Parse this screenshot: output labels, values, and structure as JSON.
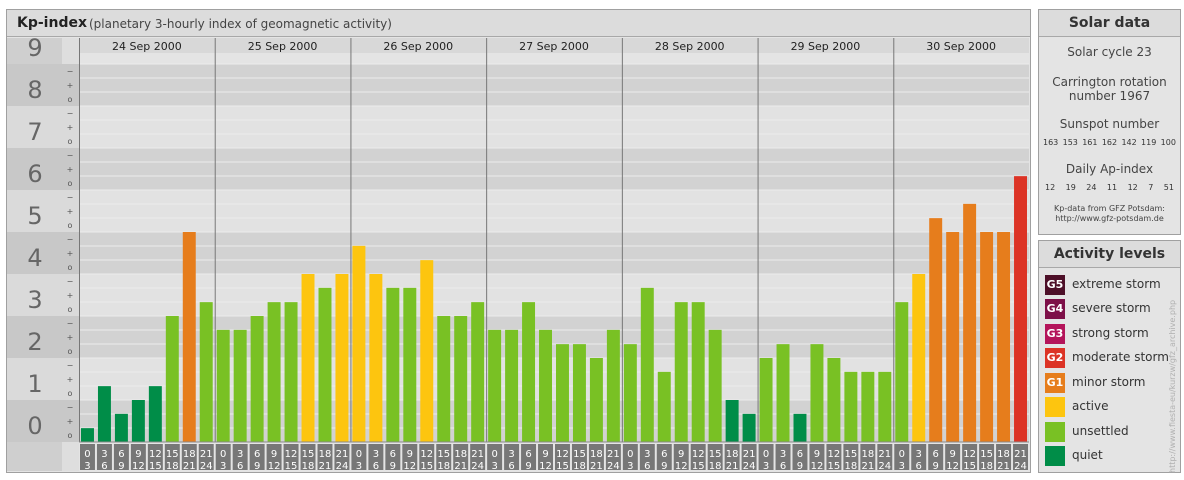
{
  "title": "Kp-index",
  "subtitle": "(planetary 3-hourly index of geomagnetic activity)",
  "chart_data": {
    "type": "bar",
    "ylim": [
      0,
      9
    ],
    "y_ticks": [
      "0",
      "1",
      "2",
      "3",
      "4",
      "5",
      "6",
      "7",
      "8",
      "9"
    ],
    "minor_marks": [
      "o",
      "+",
      "−"
    ],
    "days": [
      "24 Sep 2000",
      "25 Sep 2000",
      "26 Sep 2000",
      "27 Sep 2000",
      "28 Sep 2000",
      "29 Sep 2000",
      "30 Sep 2000"
    ],
    "hour_ranges": [
      [
        "0",
        "3"
      ],
      [
        "3",
        "6"
      ],
      [
        "6",
        "9"
      ],
      [
        "9",
        "12"
      ],
      [
        "12",
        "15"
      ],
      [
        "15",
        "18"
      ],
      [
        "18",
        "21"
      ],
      [
        "21",
        "24"
      ]
    ],
    "values": [
      0.33,
      1.33,
      0.67,
      1.0,
      1.33,
      3.0,
      5.0,
      3.33,
      2.67,
      2.67,
      3.0,
      3.33,
      3.33,
      4.0,
      3.67,
      4.0,
      4.67,
      4.0,
      3.67,
      3.67,
      4.33,
      3.0,
      3.0,
      3.33,
      2.67,
      2.67,
      3.33,
      2.67,
      2.33,
      2.33,
      2.0,
      2.67,
      2.33,
      3.67,
      1.67,
      3.33,
      3.33,
      2.67,
      1.0,
      0.67,
      2.0,
      2.33,
      0.67,
      2.33,
      2.0,
      1.67,
      1.67,
      1.67,
      3.33,
      4.0,
      5.33,
      5.0,
      5.67,
      5.0,
      5.0,
      6.33
    ]
  },
  "colors": {
    "quiet": "#008d48",
    "unsettled": "#79c124",
    "active": "#fdc50f",
    "minor_storm": "#e67d1c",
    "moderate_storm": "#dc3325"
  },
  "solar": {
    "title": "Solar data",
    "cycle": "Solar cycle 23",
    "carrington_1": "Carrington rotation",
    "carrington_2": "number 1967",
    "sunspot_title": "Sunspot number",
    "sunspots": [
      "163",
      "153",
      "161",
      "162",
      "142",
      "119",
      "100"
    ],
    "ap_title": "Daily Ap-index",
    "ap": [
      "12",
      "19",
      "24",
      "11",
      "12",
      "7",
      "51"
    ],
    "source_1": "Kp-data from GFZ Potsdam:",
    "source_2": "http://www.gfz-potsdam.de"
  },
  "legend": {
    "title": "Activity levels",
    "items": [
      {
        "code": "G5",
        "label": "extreme storm",
        "color": "#4d0f28"
      },
      {
        "code": "G4",
        "label": "severe storm",
        "color": "#7d1048"
      },
      {
        "code": "G3",
        "label": "strong storm",
        "color": "#b4145a"
      },
      {
        "code": "G2",
        "label": "moderate storm",
        "color": "#dc3325"
      },
      {
        "code": "G1",
        "label": "minor storm",
        "color": "#e67d1c"
      },
      {
        "code": "",
        "label": "active",
        "color": "#fdc50f"
      },
      {
        "code": "",
        "label": "unsettled",
        "color": "#79c124"
      },
      {
        "code": "",
        "label": "quiet",
        "color": "#008d48"
      }
    ]
  },
  "watermark": "http://www.fiesta-eu/kurzw/gfz_archive.php"
}
